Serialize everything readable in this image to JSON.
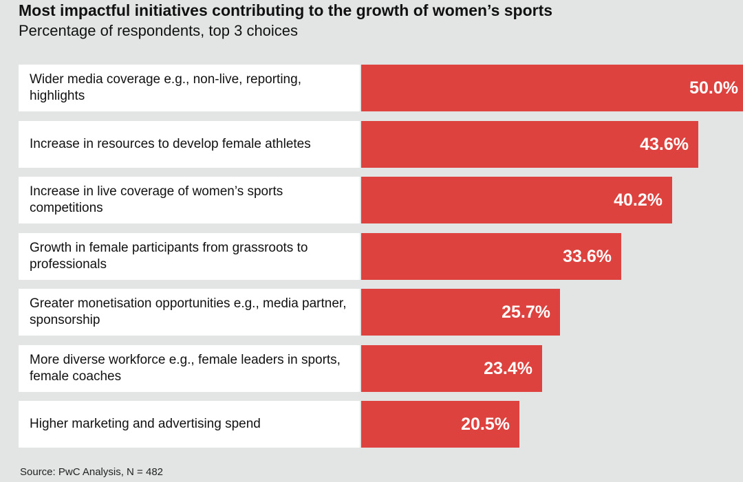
{
  "chart_data": {
    "type": "bar",
    "orientation": "horizontal",
    "title": "Most impactful initiatives contributing to the growth of women’s sports",
    "subtitle": "Percentage of respondents, top 3 choices",
    "source": "Source: PwC Analysis, N = 482",
    "categories": [
      "Wider media coverage e.g., non-live, reporting, highlights",
      "Increase in resources to develop female athletes",
      "Increase in live coverage of women’s sports competitions",
      "Growth in female participants from grassroots to professionals",
      "Greater monetisation opportunities e.g., media partner, sponsorship",
      "More diverse workforce e.g., female leaders in sports, female coaches",
      "Higher marketing and advertising spend"
    ],
    "values": [
      50.0,
      43.6,
      40.2,
      33.6,
      25.7,
      23.4,
      20.5
    ],
    "value_labels": [
      "50.0%",
      "43.6%",
      "40.2%",
      "33.6%",
      "25.7%",
      "23.4%",
      "20.5%"
    ],
    "xlim": [
      0,
      50
    ],
    "unit": "%",
    "grid": false,
    "bar_color": "#dd423e",
    "label_background": "#ffffff",
    "background": "#e3e5e5"
  }
}
